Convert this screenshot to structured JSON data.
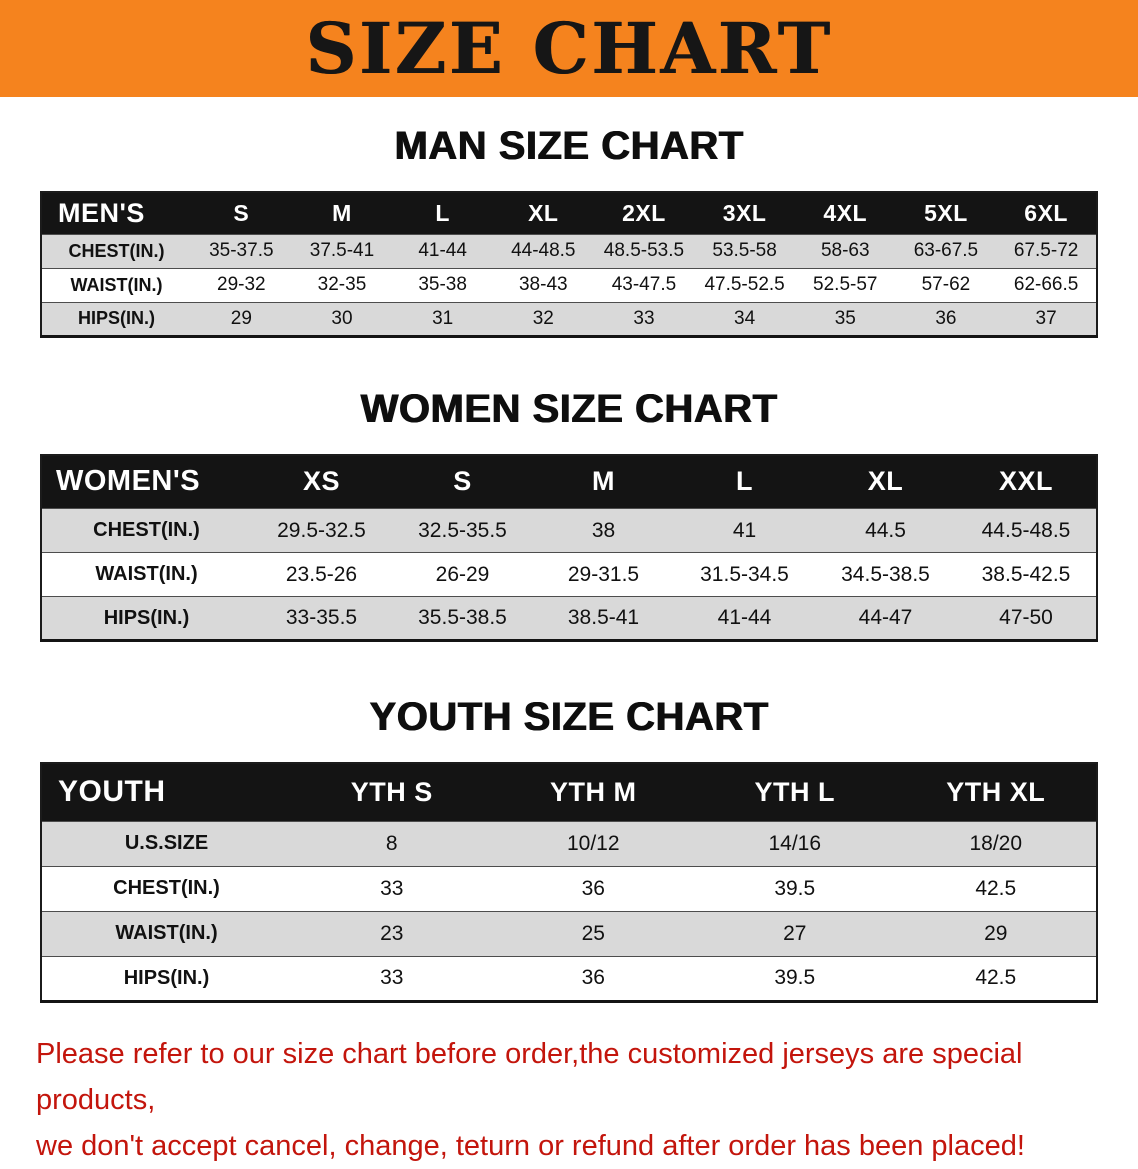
{
  "banner": {
    "title": "SIZE CHART",
    "bg_color": "#f5831e",
    "text_color": "#161616"
  },
  "sections": {
    "men": {
      "heading": "MAN SIZE CHART",
      "table": {
        "header": [
          "MEN'S",
          "S",
          "M",
          "L",
          "XL",
          "2XL",
          "3XL",
          "4XL",
          "5XL",
          "6XL"
        ],
        "rows": [
          [
            "CHEST(IN.)",
            "35-37.5",
            "37.5-41",
            "41-44",
            "44-48.5",
            "48.5-53.5",
            "53.5-58",
            "58-63",
            "63-67.5",
            "67.5-72"
          ],
          [
            "WAIST(IN.)",
            "29-32",
            "32-35",
            "35-38",
            "38-43",
            "43-47.5",
            "47.5-52.5",
            "52.5-57",
            "57-62",
            "62-66.5"
          ],
          [
            "HIPS(IN.)",
            "29",
            "30",
            "31",
            "32",
            "33",
            "34",
            "35",
            "36",
            "37"
          ]
        ]
      }
    },
    "women": {
      "heading": "WOMEN SIZE CHART",
      "table": {
        "header": [
          "WOMEN'S",
          "XS",
          "S",
          "M",
          "L",
          "XL",
          "XXL"
        ],
        "rows": [
          [
            "CHEST(IN.)",
            "29.5-32.5",
            "32.5-35.5",
            "38",
            "41",
            "44.5",
            "44.5-48.5"
          ],
          [
            "WAIST(IN.)",
            "23.5-26",
            "26-29",
            "29-31.5",
            "31.5-34.5",
            "34.5-38.5",
            "38.5-42.5"
          ],
          [
            "HIPS(IN.)",
            "33-35.5",
            "35.5-38.5",
            "38.5-41",
            "41-44",
            "44-47",
            "47-50"
          ]
        ]
      }
    },
    "youth": {
      "heading": "YOUTH SIZE CHART",
      "table": {
        "header": [
          "YOUTH",
          "YTH S",
          "YTH M",
          "YTH L",
          "YTH XL"
        ],
        "rows": [
          [
            "U.S.SIZE",
            "8",
            "10/12",
            "14/16",
            "18/20"
          ],
          [
            "CHEST(IN.)",
            "33",
            "36",
            "39.5",
            "42.5"
          ],
          [
            "WAIST(IN.)",
            "23",
            "25",
            "27",
            "29"
          ],
          [
            "HIPS(IN.)",
            "33",
            "36",
            "39.5",
            "42.5"
          ]
        ]
      }
    }
  },
  "disclaimer": {
    "text_color": "#c3150c",
    "lines": [
      "Please refer to our size chart before order,the customized jerseys are special products,",
      "we don't accept cancel, change, teturn or refund after order has been placed!"
    ]
  }
}
